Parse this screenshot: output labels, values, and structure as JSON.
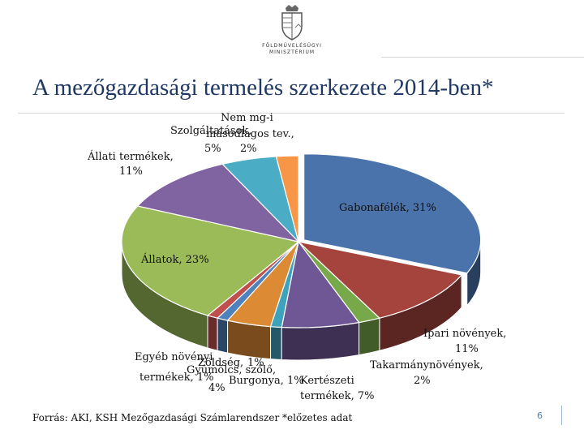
{
  "header": {
    "ministry_name": "FÖLDMŰVELÉSÜGYI\nMINISZTÉRIUM"
  },
  "colors": {
    "title": "#1f3864",
    "gabonafelek": "#4a72ab",
    "ipari": "#a5433d",
    "takarmany": "#77a84a",
    "kerteszeti": "#6f5795",
    "burgonya": "#3fa2bd",
    "gyumolcs": "#dd8a35",
    "zoldseg": "#4f81bd",
    "egyeb": "#c0504d",
    "allatok": "#9bbb59",
    "allati_termekek": "#8064a2",
    "szolgaltatasok": "#4bacc6",
    "nem_mg": "#f79646"
  },
  "chart_data": {
    "type": "pie",
    "style": "3d-exploded",
    "title": "A mezőgazdasági termelés szerkezete 2014-ben*",
    "unit": "%",
    "slices": [
      {
        "key": "gabonafelek",
        "label": "Gabonafélék, 31%",
        "value": 31,
        "color": "#4a72ab"
      },
      {
        "key": "ipari",
        "label": "Ipari növények, 11%",
        "value": 11,
        "color": "#a5433d"
      },
      {
        "key": "takarmany",
        "label": "Takarmánynövények, 2%",
        "value": 2,
        "color": "#77a84a"
      },
      {
        "key": "kerteszeti",
        "label": "Kertészeti termékek, 7%",
        "value": 7,
        "color": "#6f5795"
      },
      {
        "key": "burgonya",
        "label": "Burgonya, 1%",
        "value": 1,
        "color": "#3fa2bd"
      },
      {
        "key": "gyumolcs",
        "label": "Gyümölcs, szőlő, 4%",
        "value": 4,
        "color": "#dd8a35"
      },
      {
        "key": "zoldseg",
        "label": "Zöldség, 1%",
        "value": 1,
        "color": "#4f81bd"
      },
      {
        "key": "egyeb",
        "label": "Egyéb növényi termékek, 1%",
        "value": 1,
        "color": "#c0504d"
      },
      {
        "key": "allatok",
        "label": "Állatok, 23%",
        "value": 23,
        "color": "#9bbb59"
      },
      {
        "key": "allati_termekek",
        "label": "Állati termékek, 11%",
        "value": 11,
        "color": "#8064a2"
      },
      {
        "key": "szolgaltatasok",
        "label": "Szolgáltatások, 5%",
        "value": 5,
        "color": "#4bacc6"
      },
      {
        "key": "nem_mg",
        "label": "Nem mg-i másodlagos tev., 2%",
        "value": 2,
        "color": "#f79646"
      }
    ],
    "label_text": {
      "nem_mg_line1": "Nem mg-i",
      "szolg_line1": "Szolgáltatások,",
      "masodlagos": "másodlagos tev.,",
      "szolg_pct": "5%",
      "nem_mg_pct": "2%",
      "allati_line1": "Állati termékek,",
      "allati_pct": "11%",
      "gabonafelek": "Gabonafélék, 31%",
      "allatok": "Állatok, 23%",
      "ipari_line1": "Ipari növények,",
      "ipari_pct": "11%",
      "takarmany_line1": "Takarmánynövények,",
      "takarmany_pct": "2%",
      "egyeb_line1": "Egyéb növényi",
      "zoldseg_pct": "1%",
      "zoldseg": "Zöldség,",
      "gyumolcs": "Gyümölcs, szőlő,",
      "egyeb_line2": "termékek, 1%",
      "burgonya": "Burgonya, 1%",
      "gyumolcs_pct": "4%",
      "kerteszeti_line1": "Kertészeti",
      "kerteszeti_line2": "termékek, 7%"
    }
  },
  "footer": {
    "source": "Forrás: AKI, KSH Mezőgazdasági Számlarendszer *előzetes adat",
    "page_number": "6"
  }
}
